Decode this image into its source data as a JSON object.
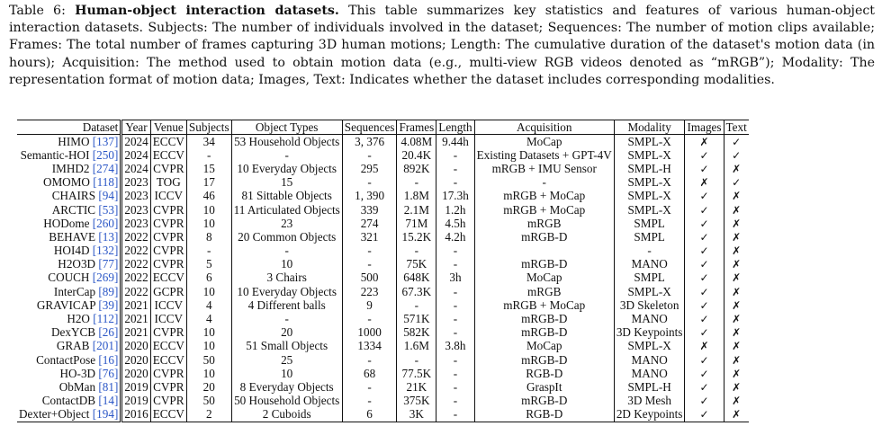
{
  "caption": {
    "prefix": "Table 6: ",
    "title": "Human-object interaction datasets.",
    "body": " This table summarizes key statistics and features of various human-object interaction datasets. Subjects: The number of individuals involved in the dataset; Sequences: The number of motion clips available; Frames: The total number of frames capturing 3D human motions; Length: The cumulative duration of the dataset's motion data (in hours); Acquisition: The method used to obtain motion data (e.g., multi-view RGB videos denoted as “mRGB”); Modality: The representation format of motion data; Images, Text: Indicates whether the dataset includes corresponding modalities."
  },
  "table": {
    "headers": [
      "Dataset",
      "Year",
      "Venue",
      "Subjects",
      "Object Types",
      "Sequences",
      "Frames",
      "Length",
      "Acquisition",
      "Modality",
      "Images",
      "Text"
    ],
    "rows": [
      [
        "HIMO",
        "[137]",
        "2024",
        "ECCV",
        "34",
        "53 Household Objects",
        "3, 376",
        "4.08M",
        "9.44h",
        "MoCap",
        "SMPL-X",
        "✗",
        "✓"
      ],
      [
        "Semantic-HOI",
        "[250]",
        "2024",
        "ECCV",
        "-",
        "-",
        "-",
        "20.4K",
        "-",
        "Existing Datasets + GPT-4V",
        "SMPL-X",
        "✓",
        "✓"
      ],
      [
        "IMHD2",
        "[274]",
        "2024",
        "CVPR",
        "15",
        "10 Everyday Objects",
        "295",
        "892K",
        "-",
        "mRGB + IMU Sensor",
        "SMPL-H",
        "✓",
        "✗"
      ],
      [
        "OMOMO",
        "[118]",
        "2023",
        "TOG",
        "17",
        "15",
        "-",
        "-",
        "-",
        "-",
        "SMPL-X",
        "✗",
        "✓"
      ],
      [
        "CHAIRS",
        "[94]",
        "2023",
        "ICCV",
        "46",
        "81 Sittable Objects",
        "1, 390",
        "1.8M",
        "17.3h",
        "mRGB + MoCap",
        "SMPL-X",
        "✓",
        "✗"
      ],
      [
        "ARCTIC",
        "[53]",
        "2023",
        "CVPR",
        "10",
        "11 Articulated Objects",
        "339",
        "2.1M",
        "1.2h",
        "mRGB + MoCap",
        "SMPL-X",
        "✓",
        "✗"
      ],
      [
        "HODome",
        "[260]",
        "2023",
        "CVPR",
        "10",
        "23",
        "274",
        "71M",
        "4.5h",
        "mRGB",
        "SMPL",
        "✓",
        "✗"
      ],
      [
        "BEHAVE",
        "[13]",
        "2022",
        "CVPR",
        "8",
        "20 Common Objects",
        "321",
        "15.2K",
        "4.2h",
        "mRGB-D",
        "SMPL",
        "✓",
        "✗"
      ],
      [
        "HOI4D",
        "[132]",
        "2022",
        "CVPR",
        "-",
        "-",
        "-",
        "-",
        "-",
        "",
        "-",
        "✓",
        "✗"
      ],
      [
        "H2O3D",
        "[77]",
        "2022",
        "CVPR",
        "5",
        "10",
        "-",
        "75K",
        "-",
        "mRGB-D",
        "MANO",
        "✓",
        "✗"
      ],
      [
        "COUCH",
        "[269]",
        "2022",
        "ECCV",
        "6",
        "3 Chairs",
        "500",
        "648K",
        "3h",
        "MoCap",
        "SMPL",
        "✓",
        "✗"
      ],
      [
        "InterCap",
        "[89]",
        "2022",
        "GCPR",
        "10",
        "10 Everyday Objects",
        "223",
        "67.3K",
        "-",
        "mRGB",
        "SMPL-X",
        "✓",
        "✗"
      ],
      [
        "GRAVICAP",
        "[39]",
        "2021",
        "ICCV",
        "4",
        "4 Different balls",
        "9",
        "-",
        "-",
        "mRGB + MoCap",
        "3D Skeleton",
        "✓",
        "✗"
      ],
      [
        "H2O",
        "[112]",
        "2021",
        "ICCV",
        "4",
        "-",
        "-",
        "571K",
        "-",
        "mRGB-D",
        "MANO",
        "✓",
        "✗"
      ],
      [
        "DexYCB",
        "[26]",
        "2021",
        "CVPR",
        "10",
        "20",
        "1000",
        "582K",
        "-",
        "mRGB-D",
        "3D Keypoints",
        "✓",
        "✗"
      ],
      [
        "GRAB",
        "[201]",
        "2020",
        "ECCV",
        "10",
        "51 Small Objects",
        "1334",
        "1.6M",
        "3.8h",
        "MoCap",
        "SMPL-X",
        "✗",
        "✗"
      ],
      [
        "ContactPose",
        "[16]",
        "2020",
        "ECCV",
        "50",
        "25",
        "-",
        "-",
        "-",
        "mRGB-D",
        "MANO",
        "✓",
        "✗"
      ],
      [
        "HO-3D",
        "[76]",
        "2020",
        "CVPR",
        "10",
        "10",
        "68",
        "77.5K",
        "-",
        "RGB-D",
        "MANO",
        "✓",
        "✗"
      ],
      [
        "ObMan",
        "[81]",
        "2019",
        "CVPR",
        "20",
        "8 Everyday Objects",
        "-",
        "21K",
        "-",
        "GraspIt",
        "SMPL-H",
        "✓",
        "✗"
      ],
      [
        "ContactDB",
        "[14]",
        "2019",
        "CVPR",
        "50",
        "50 Household Objects",
        "-",
        "375K",
        "-",
        "mRGB-D",
        "3D Mesh",
        "✓",
        "✗"
      ],
      [
        "Dexter+Object",
        "[194]",
        "2016",
        "ECCV",
        "2",
        "2 Cuboids",
        "6",
        "3K",
        "-",
        "RGB-D",
        "2D Keypoints",
        "✓",
        "✗"
      ]
    ]
  }
}
